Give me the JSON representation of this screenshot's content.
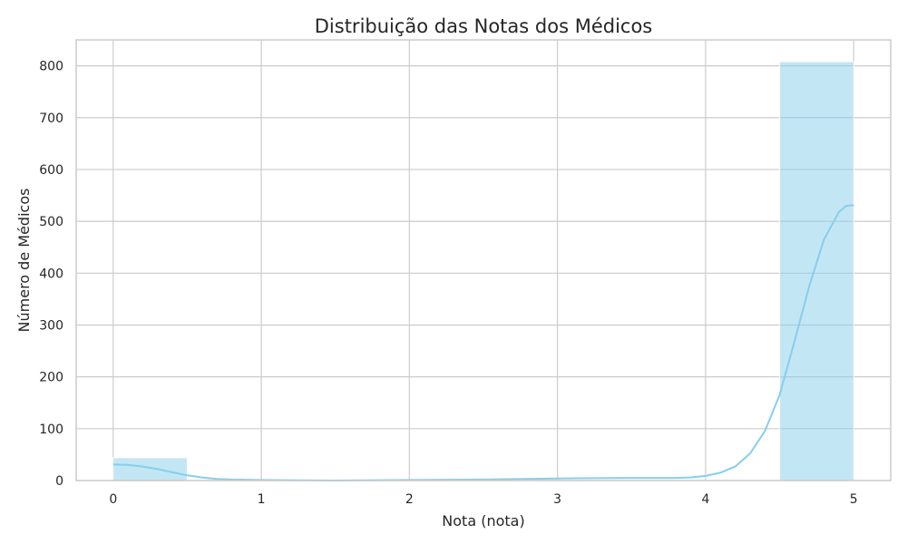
{
  "chart_data": {
    "type": "bar",
    "title": "Distribuição das Notas dos Médicos",
    "xlabel": "Nota (nota)",
    "ylabel": "Número de Médicos",
    "xlim": [
      -0.25,
      5.25
    ],
    "ylim": [
      0,
      850
    ],
    "xticks": [
      0,
      1,
      2,
      3,
      4,
      5
    ],
    "yticks": [
      0,
      100,
      200,
      300,
      400,
      500,
      600,
      700,
      800
    ],
    "grid": true,
    "bins": [
      {
        "start": 0.0,
        "end": 0.5,
        "count": 44
      },
      {
        "start": 0.5,
        "end": 1.0,
        "count": 0
      },
      {
        "start": 1.0,
        "end": 1.5,
        "count": 0
      },
      {
        "start": 1.5,
        "end": 2.0,
        "count": 0
      },
      {
        "start": 2.0,
        "end": 2.5,
        "count": 0
      },
      {
        "start": 2.5,
        "end": 3.0,
        "count": 0
      },
      {
        "start": 3.0,
        "end": 3.5,
        "count": 0
      },
      {
        "start": 3.5,
        "end": 4.0,
        "count": 0
      },
      {
        "start": 4.0,
        "end": 4.5,
        "count": 0
      },
      {
        "start": 4.5,
        "end": 5.0,
        "count": 808
      }
    ],
    "kde": {
      "x": [
        0,
        0.1,
        0.2,
        0.3,
        0.4,
        0.5,
        0.6,
        0.7,
        0.8,
        1.0,
        1.5,
        2.0,
        2.5,
        3.0,
        3.5,
        3.8,
        3.9,
        4.0,
        4.1,
        4.2,
        4.3,
        4.4,
        4.5,
        4.6,
        4.7,
        4.8,
        4.9,
        4.95,
        5.0
      ],
      "y": [
        31,
        30,
        27,
        22,
        16,
        10,
        6,
        3,
        2,
        1,
        0,
        1,
        2,
        4,
        5,
        5,
        6,
        9,
        15,
        27,
        52,
        95,
        165,
        268,
        375,
        465,
        518,
        530,
        531
      ]
    },
    "colors": {
      "bar": "#87ceeb",
      "line": "#87ceeb",
      "grid": "#cccccc",
      "axes_edge": "#cccccc",
      "text": "#262626"
    }
  }
}
